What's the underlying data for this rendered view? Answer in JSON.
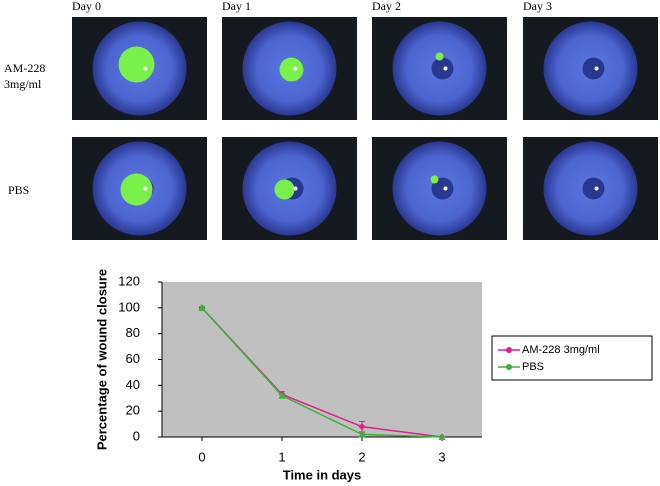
{
  "photos": {
    "columns": [
      "Day 0",
      "Day 1",
      "Day 2",
      "Day 3"
    ],
    "rows": [
      "AM-228 3mg/ml",
      "PBS"
    ]
  },
  "chart_data": {
    "type": "line",
    "x_label": "Time in days",
    "y_label": "Percentage of wound closure",
    "x": [
      0,
      1,
      2,
      3
    ],
    "series": [
      {
        "name": "AM-228 3mg/ml",
        "color": "#e0208c",
        "values": [
          100,
          33,
          8,
          0
        ],
        "errors": [
          1,
          2,
          4,
          0
        ]
      },
      {
        "name": "PBS",
        "color": "#3cb43c",
        "values": [
          100,
          32,
          2,
          0
        ],
        "errors": [
          1,
          1,
          1,
          0
        ]
      }
    ],
    "xlim": [
      -0.5,
      3.5
    ],
    "xticks": [
      0,
      1,
      2,
      3
    ],
    "ylim": [
      0,
      120
    ],
    "yticks": [
      0,
      20,
      40,
      60,
      80,
      100,
      120
    ],
    "grid": false,
    "legend": "right",
    "background": "#c0c0c0"
  }
}
